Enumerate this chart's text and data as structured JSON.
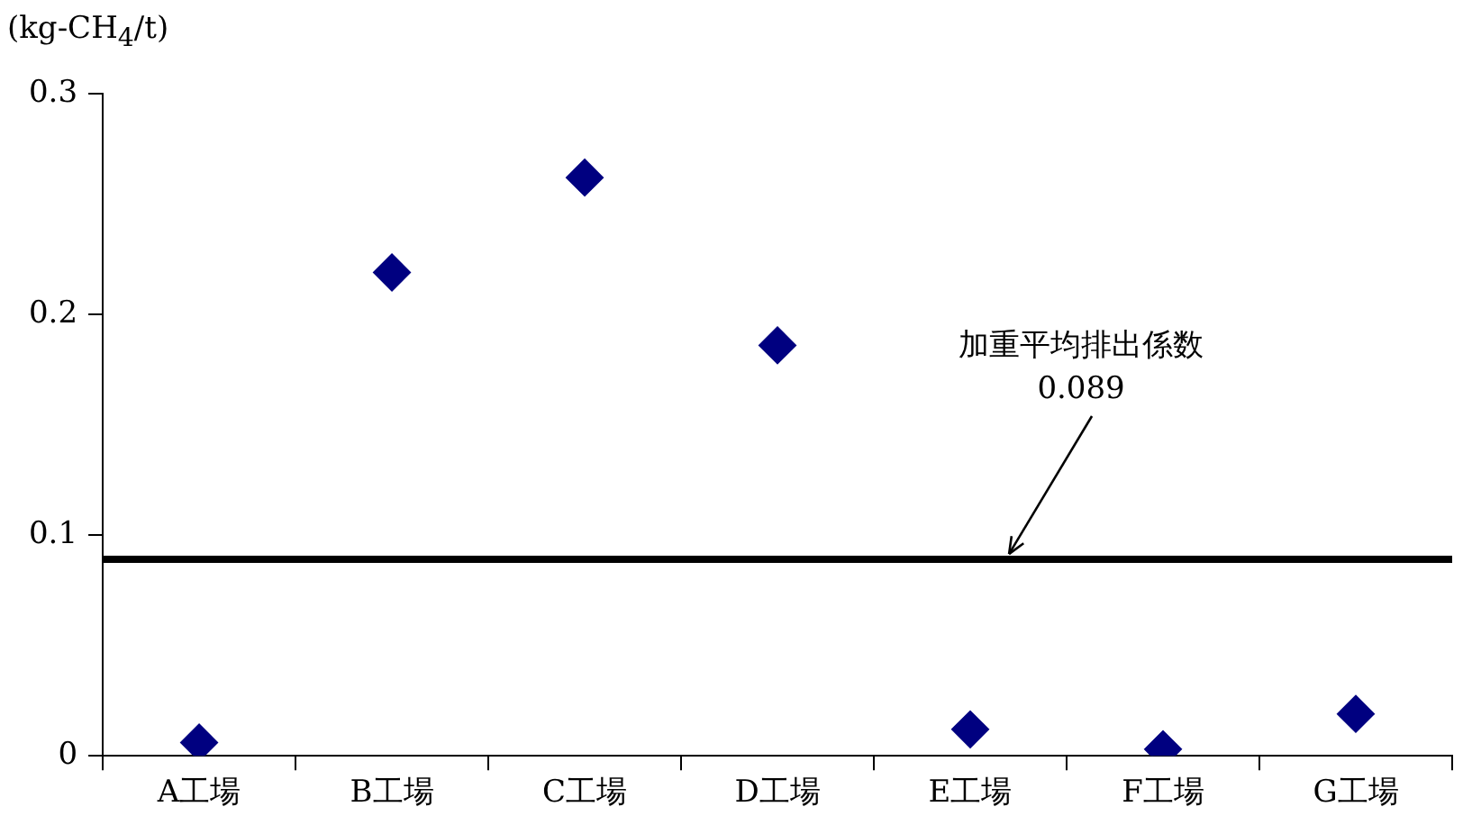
{
  "chart_data": {
    "type": "scatter",
    "ylabel": "(kg-CH$_{4}$/t)",
    "categories": [
      "A工場",
      "B工場",
      "C工場",
      "D工場",
      "E工場",
      "F工場",
      "G工場"
    ],
    "series": [
      {
        "color": "#000080",
        "values": [
          0.006,
          0.219,
          0.262,
          0.186,
          0.012,
          0.003,
          0.019
        ]
      }
    ],
    "ylim": [
      0,
      0.3
    ],
    "yticks": [
      0,
      0.1,
      0.2,
      0.3
    ],
    "grid": false,
    "legend": false,
    "marker": "diamond",
    "ref_lines": [
      {
        "axis": "y",
        "value": 0.089,
        "label": "加重平均排出係数\n0.089",
        "color": "#000000"
      }
    ]
  }
}
